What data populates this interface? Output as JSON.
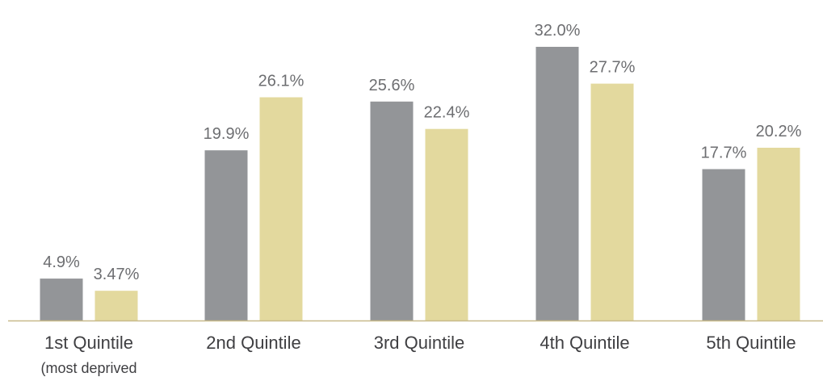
{
  "chart_data": {
    "type": "bar",
    "categories": [
      "1st Quintile",
      "2nd Quintile",
      "3rd Quintile",
      "4th Quintile",
      "5th Quintile"
    ],
    "category_sublabels": [
      "(most deprived",
      "",
      "",
      "",
      ""
    ],
    "series": [
      {
        "color": "#939598",
        "values": [
          4.9,
          19.9,
          25.6,
          32.0,
          17.7
        ],
        "labels": [
          "4.9%",
          "19.9%",
          "25.6%",
          "32.0%",
          "17.7%"
        ]
      },
      {
        "color": "#e3d99e",
        "values": [
          3.47,
          26.1,
          22.4,
          27.7,
          20.2
        ],
        "labels": [
          "3.47%",
          "26.1%",
          "22.4%",
          "27.7%",
          "20.2%"
        ]
      }
    ],
    "title": "",
    "xlabel": "",
    "ylabel": "",
    "ylim": [
      0,
      32
    ],
    "grid": false,
    "legend": "none",
    "axis_color": "#c8b98a"
  }
}
